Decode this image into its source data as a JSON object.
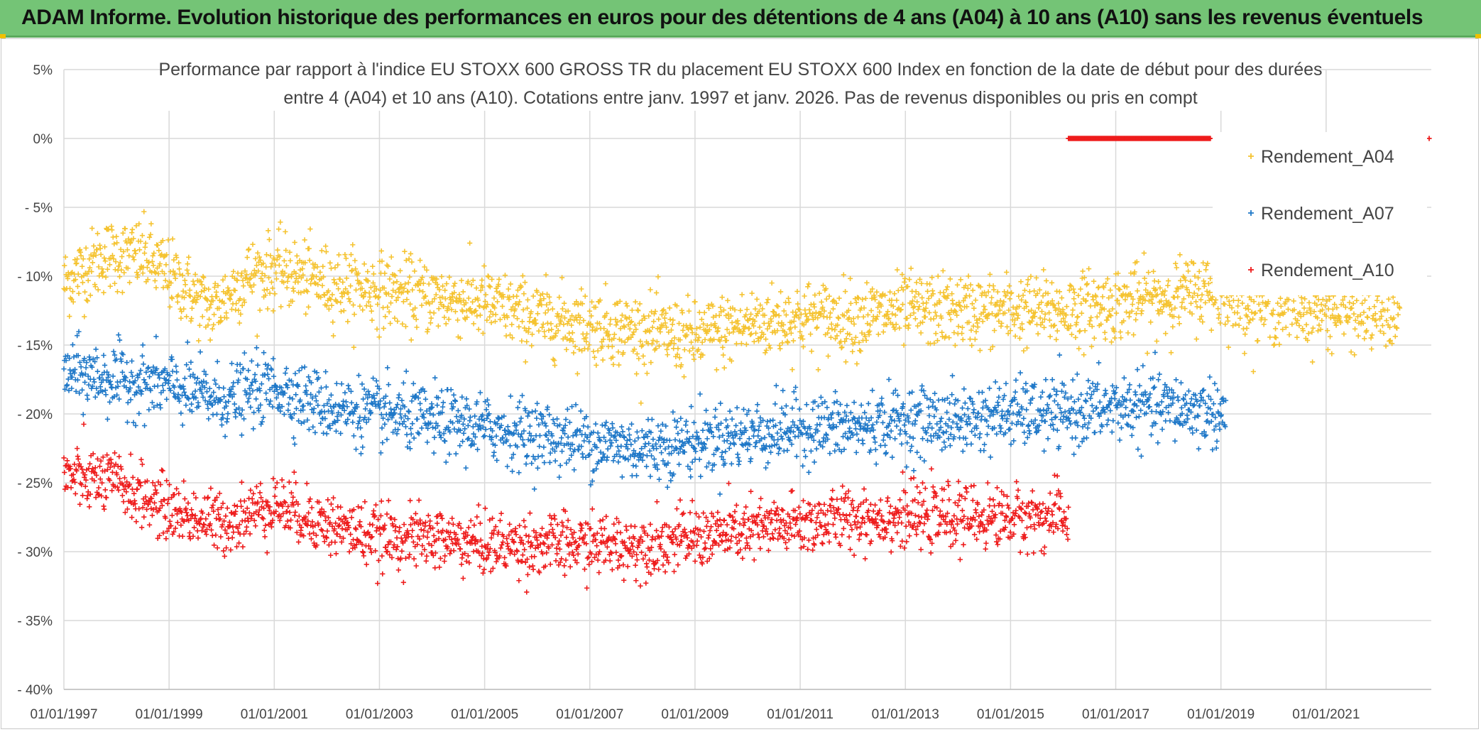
{
  "header": {
    "title": "ADAM Informe. Evolution historique des performances en euros pour des détentions de 4 ans (A04) à 10 ans (A10) sans les revenus éventuels"
  },
  "chart_data": {
    "type": "scatter",
    "title_lines": [
      "Performance par rapport à l'indice EU STOXX 600 GROSS TR  du placement EU STOXX 600 Index en fonction de la date de début pour des durées",
      "entre 4 (A04) et 10 ans (A10). Cotations entre janv. 1997 et janv. 2026. Pas de revenus disponibles ou pris en compt"
    ],
    "xlabel": "",
    "ylabel": "",
    "xlim": [
      1997.0,
      2023.0
    ],
    "ylim": [
      -40,
      5
    ],
    "y_ticks": [
      5,
      0,
      -5,
      -10,
      -15,
      -20,
      -25,
      -30,
      -35,
      -40
    ],
    "y_tick_labels": [
      "5%",
      "0%",
      "- 5%",
      "- 10%",
      "- 15%",
      "- 20%",
      "- 25%",
      "- 30%",
      "- 35%",
      "- 40%"
    ],
    "x_ticks": [
      1997,
      1999,
      2001,
      2003,
      2005,
      2007,
      2009,
      2011,
      2013,
      2015,
      2017,
      2019,
      2021
    ],
    "x_tick_labels": [
      "01/01/1997",
      "01/01/1999",
      "01/01/2001",
      "01/01/2003",
      "01/01/2005",
      "01/01/2007",
      "01/01/2009",
      "01/01/2011",
      "01/01/2013",
      "01/01/2015",
      "01/01/2017",
      "01/01/2019",
      "01/01/2021"
    ],
    "legend_position": "right",
    "series": [
      {
        "name": "Rendement_A04",
        "color": "#f5c330",
        "x_range": [
          1997.0,
          2022.4
        ],
        "trend": [
          [
            1997.0,
            -10.5
          ],
          [
            1997.8,
            -8.5
          ],
          [
            1998.5,
            -8.5
          ],
          [
            1999.2,
            -10.5
          ],
          [
            1999.8,
            -12.5
          ],
          [
            2000.5,
            -10.0
          ],
          [
            2001.0,
            -9.5
          ],
          [
            2002.0,
            -10.5
          ],
          [
            2003.0,
            -11.0
          ],
          [
            2004.0,
            -11.5
          ],
          [
            2005.0,
            -12.0
          ],
          [
            2006.0,
            -13.0
          ],
          [
            2007.0,
            -13.5
          ],
          [
            2008.0,
            -14.0
          ],
          [
            2009.0,
            -14.5
          ],
          [
            2010.0,
            -13.5
          ],
          [
            2011.0,
            -13.0
          ],
          [
            2012.0,
            -13.0
          ],
          [
            2013.0,
            -12.5
          ],
          [
            2014.0,
            -12.5
          ],
          [
            2015.0,
            -12.5
          ],
          [
            2016.0,
            -12.5
          ],
          [
            2017.0,
            -12.0
          ],
          [
            2018.0,
            -11.5
          ],
          [
            2018.8,
            -11.0
          ],
          [
            2019.5,
            -12.0
          ],
          [
            2021.0,
            -12.5
          ],
          [
            2022.4,
            -12.8
          ]
        ],
        "spread": 1.3
      },
      {
        "name": "Rendement_A07",
        "color": "#1f78c8",
        "x_range": [
          1997.0,
          2019.1
        ],
        "trend": [
          [
            1997.0,
            -17.0
          ],
          [
            1998.0,
            -17.5
          ],
          [
            1999.0,
            -18.0
          ],
          [
            2000.0,
            -19.0
          ],
          [
            2001.0,
            -18.0
          ],
          [
            2002.0,
            -19.5
          ],
          [
            2003.0,
            -20.0
          ],
          [
            2004.0,
            -20.5
          ],
          [
            2005.0,
            -21.0
          ],
          [
            2006.0,
            -21.5
          ],
          [
            2007.0,
            -22.0
          ],
          [
            2008.0,
            -22.5
          ],
          [
            2009.0,
            -22.0
          ],
          [
            2010.0,
            -21.5
          ],
          [
            2011.0,
            -21.0
          ],
          [
            2012.0,
            -21.0
          ],
          [
            2013.0,
            -20.5
          ],
          [
            2014.0,
            -20.5
          ],
          [
            2015.0,
            -20.0
          ],
          [
            2016.0,
            -20.0
          ],
          [
            2017.0,
            -19.5
          ],
          [
            2018.0,
            -19.5
          ],
          [
            2019.1,
            -20.0
          ]
        ],
        "spread": 1.2
      },
      {
        "name": "Rendement_A10",
        "color": "#ee1c1c",
        "x_range": [
          1997.0,
          2016.1
        ],
        "trend": [
          [
            1997.0,
            -24.5
          ],
          [
            1998.0,
            -25.0
          ],
          [
            1999.0,
            -27.0
          ],
          [
            2000.0,
            -28.0
          ],
          [
            2001.0,
            -26.5
          ],
          [
            2002.0,
            -28.0
          ],
          [
            2003.0,
            -29.0
          ],
          [
            2004.0,
            -29.0
          ],
          [
            2005.0,
            -29.5
          ],
          [
            2006.0,
            -29.5
          ],
          [
            2007.0,
            -29.5
          ],
          [
            2008.0,
            -29.5
          ],
          [
            2009.0,
            -29.0
          ],
          [
            2010.0,
            -28.5
          ],
          [
            2011.0,
            -28.0
          ],
          [
            2012.0,
            -27.5
          ],
          [
            2013.0,
            -27.5
          ],
          [
            2014.0,
            -27.5
          ],
          [
            2015.0,
            -27.5
          ],
          [
            2016.1,
            -27.5
          ]
        ],
        "spread": 1.1,
        "zero_band": {
          "x_start": 2016.1,
          "x_end": 2018.8,
          "y": 0
        },
        "zero_outlier": {
          "x": 2023.0,
          "y": 0
        }
      }
    ]
  }
}
